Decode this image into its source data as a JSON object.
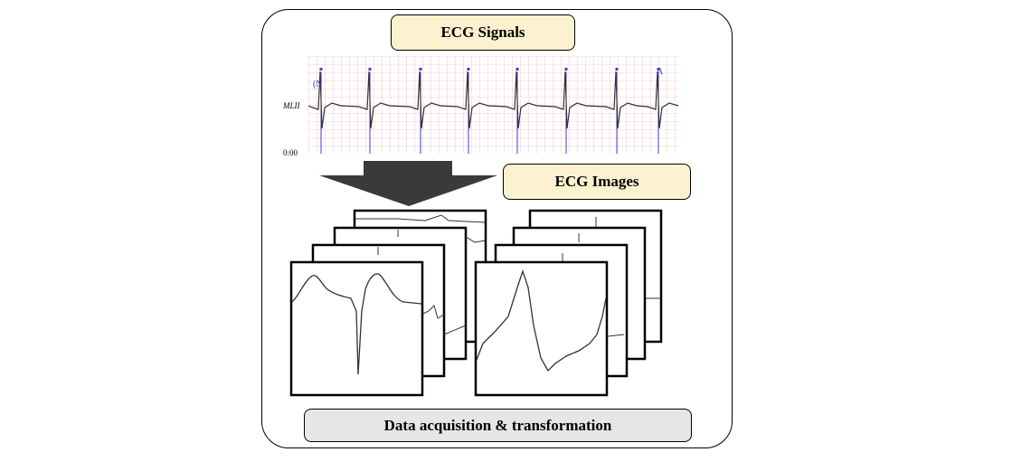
{
  "labels": {
    "ecg_signals": "ECG Signals",
    "ecg_images": "ECG Images",
    "footer": "Data acquisition & transformation"
  },
  "strip": {
    "lead_label": "MLII",
    "time_label": "0:00",
    "beat_annotations": [
      "(N",
      "A"
    ]
  },
  "colors": {
    "label_fill": "#fdf2cf",
    "footer_fill": "#e6e6e6",
    "grid": "#f4a3a3",
    "beat_marker": "#3b3bd6",
    "arrow": "#3a3a3a"
  }
}
